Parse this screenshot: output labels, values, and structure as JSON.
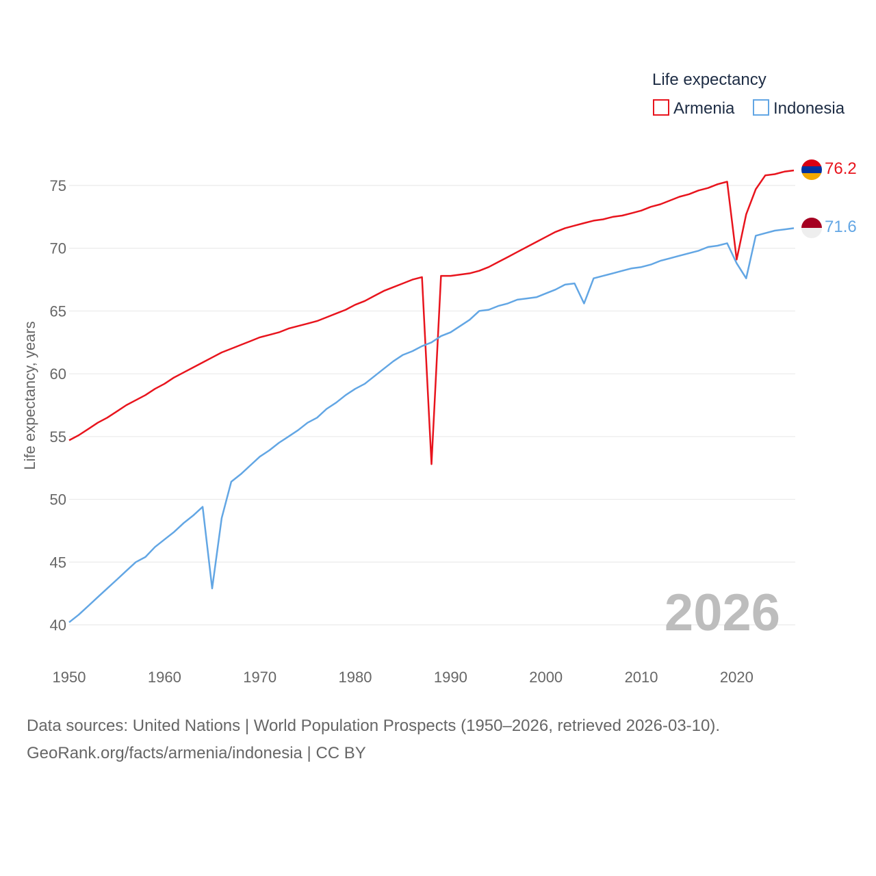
{
  "chart_data": {
    "type": "line",
    "ylabel": "Life expectancy, years",
    "xlim": [
      1950,
      2026
    ],
    "ylim": [
      38.5,
      77.5
    ],
    "y_ticks": [
      40,
      45,
      50,
      55,
      60,
      65,
      70,
      75
    ],
    "x_ticks": [
      1950,
      1960,
      1970,
      1980,
      1990,
      2000,
      2010,
      2020
    ],
    "grid": true,
    "legend_title": "Life expectancy",
    "legend_position": "top-right",
    "current_year": "2026",
    "x": [
      1950,
      1951,
      1952,
      1953,
      1954,
      1955,
      1956,
      1957,
      1958,
      1959,
      1960,
      1961,
      1962,
      1963,
      1964,
      1965,
      1966,
      1967,
      1968,
      1969,
      1970,
      1971,
      1972,
      1973,
      1974,
      1975,
      1976,
      1977,
      1978,
      1979,
      1980,
      1981,
      1982,
      1983,
      1984,
      1985,
      1986,
      1987,
      1988,
      1989,
      1990,
      1991,
      1992,
      1993,
      1994,
      1995,
      1996,
      1997,
      1998,
      1999,
      2000,
      2001,
      2002,
      2003,
      2004,
      2005,
      2006,
      2007,
      2008,
      2009,
      2010,
      2011,
      2012,
      2013,
      2014,
      2015,
      2016,
      2017,
      2018,
      2019,
      2020,
      2021,
      2022,
      2023,
      2024,
      2025,
      2026
    ],
    "series": [
      {
        "name": "Armenia",
        "color": "#e8141d",
        "end_label": "76.2",
        "values": [
          54.7,
          55.1,
          55.6,
          56.1,
          56.5,
          57.0,
          57.5,
          57.9,
          58.3,
          58.8,
          59.2,
          59.7,
          60.1,
          60.5,
          60.9,
          61.3,
          61.7,
          62.0,
          62.3,
          62.6,
          62.9,
          63.1,
          63.3,
          63.6,
          63.8,
          64.0,
          64.2,
          64.5,
          64.8,
          65.1,
          65.5,
          65.8,
          66.2,
          66.6,
          66.9,
          67.2,
          67.5,
          67.7,
          52.8,
          67.8,
          67.8,
          67.9,
          68.0,
          68.2,
          68.5,
          68.9,
          69.3,
          69.7,
          70.1,
          70.5,
          70.9,
          71.3,
          71.6,
          71.8,
          72.0,
          72.2,
          72.3,
          72.5,
          72.6,
          72.8,
          73.0,
          73.3,
          73.5,
          73.8,
          74.1,
          74.3,
          74.6,
          74.8,
          75.1,
          75.3,
          69.1,
          72.7,
          74.7,
          75.8,
          75.9,
          76.1,
          76.2
        ]
      },
      {
        "name": "Indonesia",
        "color": "#62a6e4",
        "end_label": "71.6",
        "values": [
          40.2,
          40.8,
          41.5,
          42.2,
          42.9,
          43.6,
          44.3,
          45.0,
          45.4,
          46.2,
          46.8,
          47.4,
          48.1,
          48.7,
          49.4,
          42.9,
          48.5,
          51.4,
          52.0,
          52.7,
          53.4,
          53.9,
          54.5,
          55.0,
          55.5,
          56.1,
          56.5,
          57.2,
          57.7,
          58.3,
          58.8,
          59.2,
          59.8,
          60.4,
          61.0,
          61.5,
          61.8,
          62.2,
          62.5,
          63.0,
          63.3,
          63.8,
          64.3,
          65.0,
          65.1,
          65.4,
          65.6,
          65.9,
          66.0,
          66.1,
          66.4,
          66.7,
          67.1,
          67.2,
          65.6,
          67.6,
          67.8,
          68.0,
          68.2,
          68.4,
          68.5,
          68.7,
          69.0,
          69.2,
          69.4,
          69.6,
          69.8,
          70.1,
          70.2,
          70.4,
          68.8,
          67.6,
          71.0,
          71.2,
          71.4,
          71.5,
          71.6
        ]
      }
    ]
  },
  "footer": {
    "line1": "Data sources: United Nations | World Population Prospects (1950–2026, retrieved 2026-03-10).",
    "line2": "GeoRank.org/facts/armenia/indonesia | CC BY"
  }
}
